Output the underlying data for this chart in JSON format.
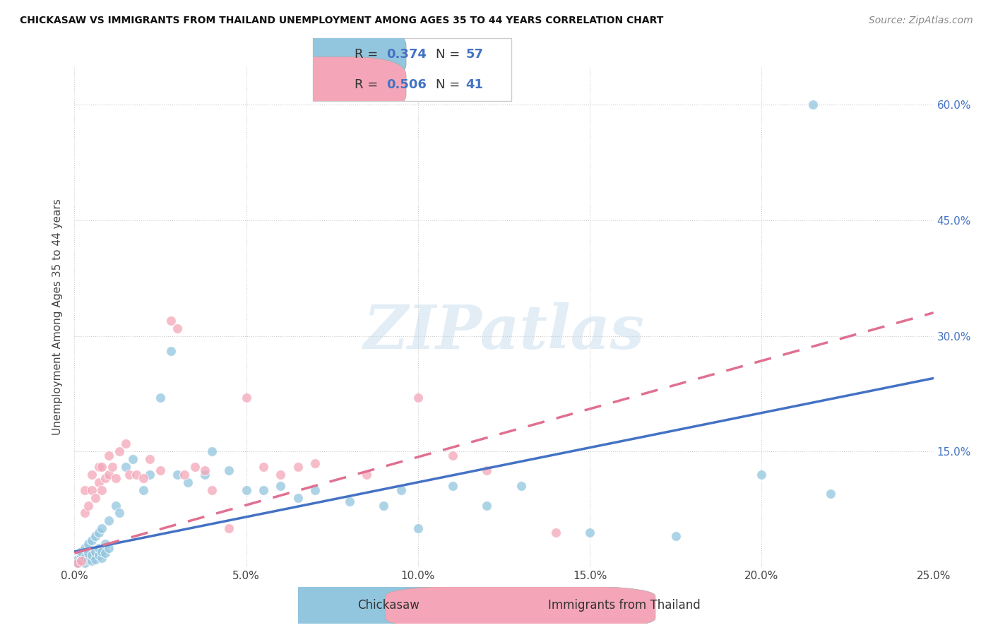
{
  "title": "CHICKASAW VS IMMIGRANTS FROM THAILAND UNEMPLOYMENT AMONG AGES 35 TO 44 YEARS CORRELATION CHART",
  "source": "Source: ZipAtlas.com",
  "ylabel": "Unemployment Among Ages 35 to 44 years",
  "xlim": [
    0.0,
    0.25
  ],
  "ylim": [
    0.0,
    0.65
  ],
  "xticks": [
    0.0,
    0.05,
    0.1,
    0.15,
    0.2,
    0.25
  ],
  "yticks": [
    0.0,
    0.15,
    0.3,
    0.45,
    0.6
  ],
  "xtick_labels": [
    "0.0%",
    "5.0%",
    "10.0%",
    "15.0%",
    "20.0%",
    "25.0%"
  ],
  "ytick_labels_right": [
    "",
    "15.0%",
    "30.0%",
    "45.0%",
    "60.0%"
  ],
  "blue_color": "#92c5de",
  "pink_color": "#f4a6b8",
  "line_blue": "#4472C4",
  "line_pink": "#e07090",
  "blue_R": "0.374",
  "blue_N": "57",
  "pink_R": "0.506",
  "pink_N": "41",
  "legend_label1": "Chickasaw",
  "legend_label2": "Immigrants from Thailand",
  "watermark": "ZIPatlas",
  "chickasaw_x": [
    0.001,
    0.001,
    0.002,
    0.002,
    0.002,
    0.003,
    0.003,
    0.003,
    0.004,
    0.004,
    0.004,
    0.005,
    0.005,
    0.005,
    0.006,
    0.006,
    0.006,
    0.007,
    0.007,
    0.007,
    0.008,
    0.008,
    0.008,
    0.009,
    0.009,
    0.01,
    0.01,
    0.012,
    0.013,
    0.015,
    0.017,
    0.02,
    0.022,
    0.025,
    0.028,
    0.03,
    0.033,
    0.038,
    0.04,
    0.045,
    0.05,
    0.055,
    0.06,
    0.065,
    0.07,
    0.08,
    0.09,
    0.095,
    0.1,
    0.11,
    0.12,
    0.13,
    0.15,
    0.175,
    0.2,
    0.215,
    0.22
  ],
  "chickasaw_y": [
    0.005,
    0.01,
    0.008,
    0.015,
    0.02,
    0.005,
    0.012,
    0.025,
    0.01,
    0.018,
    0.03,
    0.008,
    0.015,
    0.035,
    0.01,
    0.02,
    0.04,
    0.015,
    0.025,
    0.045,
    0.012,
    0.02,
    0.05,
    0.018,
    0.03,
    0.025,
    0.06,
    0.08,
    0.07,
    0.13,
    0.14,
    0.1,
    0.12,
    0.22,
    0.28,
    0.12,
    0.11,
    0.12,
    0.15,
    0.125,
    0.1,
    0.1,
    0.105,
    0.09,
    0.1,
    0.085,
    0.08,
    0.1,
    0.05,
    0.105,
    0.08,
    0.105,
    0.045,
    0.04,
    0.12,
    0.6,
    0.095
  ],
  "thailand_x": [
    0.001,
    0.002,
    0.003,
    0.003,
    0.004,
    0.005,
    0.005,
    0.006,
    0.007,
    0.007,
    0.008,
    0.008,
    0.009,
    0.01,
    0.01,
    0.011,
    0.012,
    0.013,
    0.015,
    0.016,
    0.018,
    0.02,
    0.022,
    0.025,
    0.028,
    0.03,
    0.032,
    0.035,
    0.038,
    0.04,
    0.045,
    0.05,
    0.055,
    0.06,
    0.065,
    0.07,
    0.085,
    0.1,
    0.11,
    0.12,
    0.14
  ],
  "thailand_y": [
    0.005,
    0.008,
    0.07,
    0.1,
    0.08,
    0.1,
    0.12,
    0.09,
    0.11,
    0.13,
    0.1,
    0.13,
    0.115,
    0.12,
    0.145,
    0.13,
    0.115,
    0.15,
    0.16,
    0.12,
    0.12,
    0.115,
    0.14,
    0.125,
    0.32,
    0.31,
    0.12,
    0.13,
    0.125,
    0.1,
    0.05,
    0.22,
    0.13,
    0.12,
    0.13,
    0.135,
    0.12,
    0.22,
    0.145,
    0.125,
    0.045
  ],
  "blue_line_x0": 0.0,
  "blue_line_y0": 0.02,
  "blue_line_x1": 0.25,
  "blue_line_y1": 0.245,
  "pink_line_x0": 0.0,
  "pink_line_y0": 0.018,
  "pink_line_x1": 0.25,
  "pink_line_y1": 0.33
}
